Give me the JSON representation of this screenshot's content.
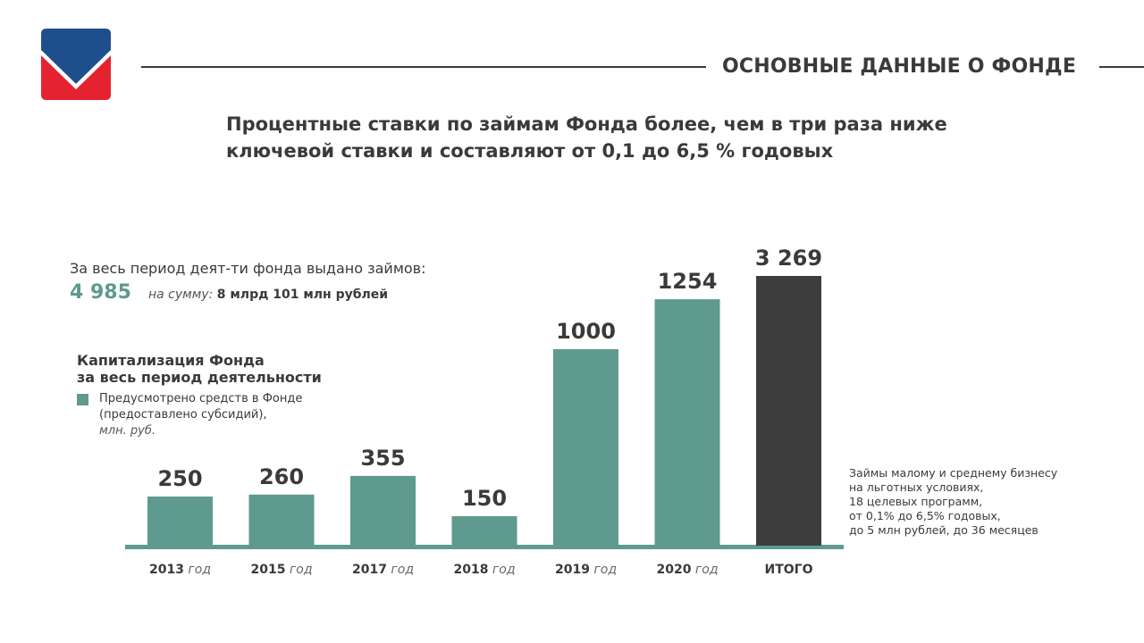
{
  "header": {
    "section_title": "ОСНОВНЫЕ ДАННЫЕ О ФОНДЕ",
    "headline_line1": "Процентные ставки по займам Фонда более, чем в три раза ниже",
    "headline_line2": "ключевой ставки и составляют от 0,1 до 6,5 % годовых"
  },
  "loans": {
    "title": "За весь период деят-ти фонда выдано займов:",
    "count": "4 985",
    "sum_label": "на сумму:",
    "sum_value": "8 млрд 101 млн рублей"
  },
  "capitalization": {
    "title_line1": "Капитализация Фонда",
    "title_line2": "за весь период деятельности",
    "legend_line1": "Предусмотрено средств в Фонде",
    "legend_line2": "(предоставлено субсидий),",
    "legend_unit": "млн. руб."
  },
  "note": {
    "line1": "Займы малому и среднему бизнесу",
    "line2": "на льготных условиях,",
    "line3": "18 целевых программ,",
    "line4": "от 0,1% до 6,5% годовых,",
    "line5": "до 5 млн рублей, до 36 месяцев"
  },
  "colors": {
    "bar": "#5f9a8f",
    "total_bar": "#3d3d3d",
    "logo_blue": "#1f4e8c",
    "logo_red": "#e52330",
    "text": "#3a3a3a"
  },
  "chart_data": {
    "type": "bar",
    "categories": [
      "2013",
      "2015",
      "2017",
      "2018",
      "2019",
      "2020",
      "ИТОГО"
    ],
    "category_suffix": "год",
    "values": [
      250,
      260,
      355,
      150,
      1000,
      1254,
      3269
    ],
    "value_labels": [
      "250",
      "260",
      "355",
      "150",
      "1000",
      "1254",
      "3 269"
    ],
    "highlight_category": "ИТОГО",
    "ylim": [
      0,
      3269
    ],
    "axis_break": true,
    "ylabel": "",
    "grid": false
  }
}
